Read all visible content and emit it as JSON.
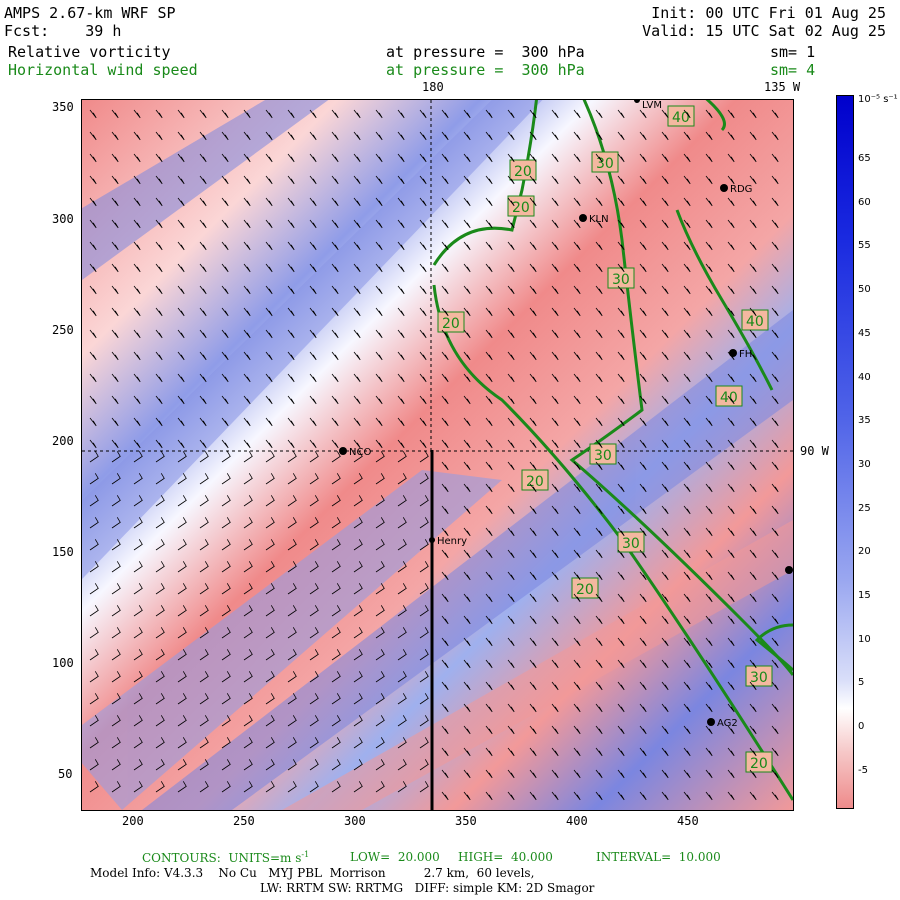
{
  "header": {
    "line1_left": "AMPS 2.67-km WRF SP",
    "line1_right": "Init: 00 UTC Fri 01 Aug 25",
    "line2_left": "Fcst:    39 h",
    "line2_right": "Valid: 15 UTC Sat 02 Aug 25",
    "field1_name": "Relative vorticity",
    "field1_level": "at pressure =  300 hPa",
    "field1_sm": "sm= 1",
    "field2_name": "Horizontal wind speed",
    "field2_level": "at pressure =  300 hPa",
    "field2_sm": "sm= 4"
  },
  "map": {
    "meridian_180_label": "180",
    "meridian_135w_label": "135 W",
    "parallel_90w_label": "90 W",
    "x_ticks": [
      "200",
      "250",
      "300",
      "350",
      "400",
      "450"
    ],
    "y_ticks": [
      "350",
      "300",
      "250",
      "200",
      "150",
      "100",
      "50"
    ],
    "stations": [
      {
        "label": "LVM"
      },
      {
        "label": "RDG"
      },
      {
        "label": "KLN"
      },
      {
        "label": "NCO"
      },
      {
        "label": "Henry"
      },
      {
        "label": "AG2"
      },
      {
        "label": "FH"
      }
    ],
    "contour_labels": [
      "40",
      "30",
      "20",
      "20",
      "30",
      "20",
      "40",
      "40",
      "30",
      "30",
      "20",
      "20",
      "30",
      "20",
      "30",
      "20"
    ]
  },
  "colorbar": {
    "unit": "10⁻⁵ s⁻¹",
    "labels": [
      "65",
      "60",
      "55",
      "50",
      "45",
      "40",
      "35",
      "30",
      "25",
      "20",
      "15",
      "10",
      "5",
      "0",
      "-5"
    ]
  },
  "footer": {
    "contours": "CONTOURS:  UNITS=m s",
    "contours_sup": "-1",
    "low": "LOW=  20.000",
    "high": "HIGH=  40.000",
    "interval": "INTERVAL=  10.000",
    "model_info": "Model Info: V4.3.3    No Cu   MYJ PBL  Morrison          2.7 km,  60 levels,",
    "physics": "LW: RRTM SW: RRTMG   DIFF: simple KM: 2D Smagor"
  },
  "colors": {
    "contour": "#1a8a1a",
    "positive_vorticity": "#1a2ae0",
    "negative_vorticity": "#ee8b8b"
  }
}
